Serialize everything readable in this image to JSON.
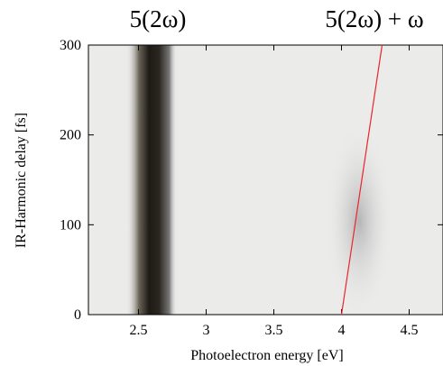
{
  "chart_data": {
    "type": "line",
    "annotations": [
      "5(2ω)",
      "5(2ω) + ω"
    ],
    "x_label": "Photoelectron energy [eV]",
    "y_label": "IR-Harmonic delay [fs]",
    "x": [
      4,
      4.3
    ],
    "values": [
      0,
      300
    ],
    "color": "#e8262b",
    "xlim": [
      2.13,
      4.75
    ],
    "xticks": [
      2.5,
      3,
      3.5,
      4,
      4.5
    ],
    "ylim": [
      0,
      300
    ],
    "yticks": [
      0,
      100,
      200,
      300
    ]
  }
}
